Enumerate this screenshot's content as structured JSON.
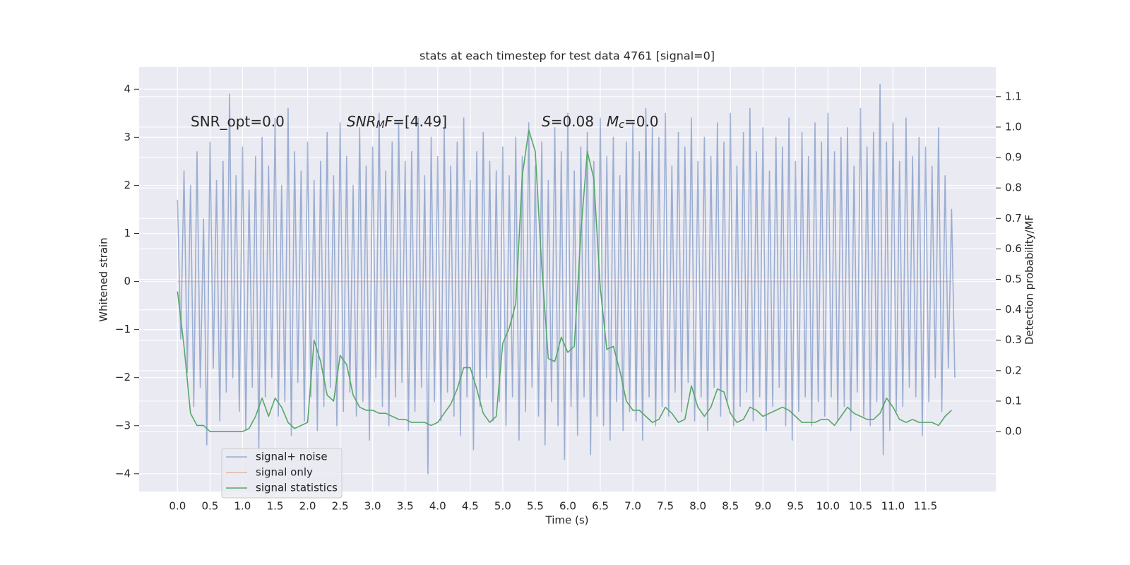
{
  "chart_data": {
    "type": "line",
    "title": "stats at each timestep for test data 4761 [signal=0]",
    "xlabel": "Time (s)",
    "ylabel": "Whitened strain",
    "y2label": "Detection probability/MF",
    "grid": true,
    "legend": "lower left",
    "xlim": [
      -0.59,
      12.58
    ],
    "ylim": [
      -4.37,
      4.46
    ],
    "y2lim": [
      -0.197,
      1.197
    ],
    "xticks": [
      {
        "value": 0,
        "label": "0.0"
      },
      {
        "value": 0.5,
        "label": "0.5"
      },
      {
        "value": 1,
        "label": "1.0"
      },
      {
        "value": 1.5,
        "label": "1.5"
      },
      {
        "value": 2,
        "label": "2.0"
      },
      {
        "value": 2.5,
        "label": "2.5"
      },
      {
        "value": 3,
        "label": "3.0"
      },
      {
        "value": 3.5,
        "label": "3.5"
      },
      {
        "value": 4,
        "label": "4.0"
      },
      {
        "value": 4.5,
        "label": "4.5"
      },
      {
        "value": 5,
        "label": "5.0"
      },
      {
        "value": 5.5,
        "label": "5.5"
      },
      {
        "value": 6,
        "label": "6.0"
      },
      {
        "value": 6.5,
        "label": "6.5"
      },
      {
        "value": 7,
        "label": "7.0"
      },
      {
        "value": 7.5,
        "label": "7.5"
      },
      {
        "value": 8,
        "label": "8.0"
      },
      {
        "value": 8.5,
        "label": "8.5"
      },
      {
        "value": 9,
        "label": "9.0"
      },
      {
        "value": 9.5,
        "label": "9.5"
      },
      {
        "value": 10,
        "label": "10.0"
      },
      {
        "value": 10.5,
        "label": "10.5"
      },
      {
        "value": 11,
        "label": "11.0"
      },
      {
        "value": 11.5,
        "label": "11.5"
      }
    ],
    "yticks": [
      {
        "value": -4,
        "label": "−4"
      },
      {
        "value": -3,
        "label": "−3"
      },
      {
        "value": -2,
        "label": "−2"
      },
      {
        "value": -1,
        "label": "−1"
      },
      0,
      1,
      2,
      3,
      4
    ],
    "y2ticks": [
      {
        "value": 0,
        "label": "0.0"
      },
      {
        "value": 0.1,
        "label": "0.1"
      },
      {
        "value": 0.2,
        "label": "0.2"
      },
      {
        "value": 0.3,
        "label": "0.3"
      },
      {
        "value": 0.4,
        "label": "0.4"
      },
      {
        "value": 0.5,
        "label": "0.5"
      },
      {
        "value": 0.6,
        "label": "0.6"
      },
      {
        "value": 0.7,
        "label": "0.7"
      },
      {
        "value": 0.8,
        "label": "0.8"
      },
      {
        "value": 0.9,
        "label": "0.9"
      },
      {
        "value": 1,
        "label": "1.0"
      },
      {
        "value": 1.1,
        "label": "1.1"
      }
    ],
    "annotations": [
      {
        "segments": [
          {
            "text": "SNR_opt=0.0"
          }
        ]
      },
      {
        "segments": [
          {
            "text": "SNR",
            "italic": true
          },
          {
            "text": "M",
            "italic": true,
            "sub": true
          },
          {
            "text": "F",
            "italic": true
          },
          {
            "text": "=[4.49]"
          }
        ]
      },
      {
        "segments": [
          {
            "text": "S",
            "italic": true
          },
          {
            "text": "=0.08"
          }
        ]
      },
      {
        "segments": [
          {
            "text": "M",
            "italic": true
          },
          {
            "text": "c",
            "italic": true,
            "sub": true
          },
          {
            "text": "=0.0"
          }
        ]
      }
    ],
    "x": [
      0,
      0.1,
      0.2,
      0.3,
      0.4,
      0.5,
      0.6,
      0.7,
      0.8,
      0.9,
      1,
      1.1,
      1.2,
      1.3,
      1.4,
      1.5,
      1.6,
      1.7,
      1.8,
      1.9,
      2,
      2.1,
      2.2,
      2.3,
      2.4,
      2.5,
      2.6,
      2.7,
      2.8,
      2.9,
      3,
      3.1,
      3.2,
      3.3,
      3.4,
      3.5,
      3.6,
      3.7,
      3.8,
      3.9,
      4,
      4.1,
      4.2,
      4.3,
      4.4,
      4.5,
      4.6,
      4.7,
      4.8,
      4.9,
      5,
      5.1,
      5.2,
      5.3,
      5.4,
      5.5,
      5.6,
      5.7,
      5.8,
      5.9,
      6,
      6.1,
      6.2,
      6.3,
      6.4,
      6.5,
      6.6,
      6.7,
      6.8,
      6.9,
      7,
      7.1,
      7.2,
      7.3,
      7.4,
      7.5,
      7.6,
      7.7,
      7.8,
      7.9,
      8,
      8.1,
      8.2,
      8.3,
      8.4,
      8.5,
      8.6,
      8.7,
      8.8,
      8.9,
      9,
      9.1,
      9.2,
      9.3,
      9.4,
      9.5,
      9.6,
      9.7,
      9.8,
      9.9,
      10,
      10.1,
      10.2,
      10.3,
      10.4,
      10.5,
      10.6,
      10.7,
      10.8,
      10.9,
      11,
      11.1,
      11.2,
      11.3,
      11.4,
      11.5,
      11.6,
      11.7,
      11.8,
      11.9
    ],
    "series": [
      {
        "name": "signal+ noise",
        "color": "#4c72b0",
        "opacity": 0.5,
        "x": [
          0,
          0.05,
          0.1,
          0.15,
          0.2,
          0.25,
          0.3,
          0.35,
          0.4,
          0.45,
          0.5,
          0.55,
          0.6,
          0.65,
          0.7,
          0.75,
          0.8,
          0.85,
          0.9,
          0.95,
          1,
          1.05,
          1.1,
          1.15,
          1.2,
          1.25,
          1.3,
          1.35,
          1.4,
          1.45,
          1.5,
          1.55,
          1.6,
          1.65,
          1.7,
          1.75,
          1.8,
          1.85,
          1.9,
          1.95,
          2,
          2.05,
          2.1,
          2.15,
          2.2,
          2.25,
          2.3,
          2.35,
          2.4,
          2.45,
          2.5,
          2.55,
          2.6,
          2.65,
          2.7,
          2.75,
          2.8,
          2.85,
          2.9,
          2.95,
          3,
          3.05,
          3.1,
          3.15,
          3.2,
          3.25,
          3.3,
          3.35,
          3.4,
          3.45,
          3.5,
          3.55,
          3.6,
          3.65,
          3.7,
          3.75,
          3.8,
          3.85,
          3.9,
          3.95,
          4,
          4.05,
          4.1,
          4.15,
          4.2,
          4.25,
          4.3,
          4.35,
          4.4,
          4.45,
          4.5,
          4.55,
          4.6,
          4.65,
          4.7,
          4.75,
          4.8,
          4.85,
          4.9,
          4.95,
          5,
          5.05,
          5.1,
          5.15,
          5.2,
          5.25,
          5.3,
          5.35,
          5.4,
          5.45,
          5.5,
          5.55,
          5.6,
          5.65,
          5.7,
          5.75,
          5.8,
          5.85,
          5.9,
          5.95,
          6,
          6.05,
          6.1,
          6.15,
          6.2,
          6.25,
          6.3,
          6.35,
          6.4,
          6.45,
          6.5,
          6.55,
          6.6,
          6.65,
          6.7,
          6.75,
          6.8,
          6.85,
          6.9,
          6.95,
          7,
          7.05,
          7.1,
          7.15,
          7.2,
          7.25,
          7.3,
          7.35,
          7.4,
          7.45,
          7.5,
          7.55,
          7.6,
          7.65,
          7.7,
          7.75,
          7.8,
          7.85,
          7.9,
          7.95,
          8,
          8.05,
          8.1,
          8.15,
          8.2,
          8.25,
          8.3,
          8.35,
          8.4,
          8.45,
          8.5,
          8.55,
          8.6,
          8.65,
          8.7,
          8.75,
          8.8,
          8.85,
          8.9,
          8.95,
          9,
          9.05,
          9.1,
          9.15,
          9.2,
          9.25,
          9.3,
          9.35,
          9.4,
          9.45,
          9.5,
          9.55,
          9.6,
          9.65,
          9.7,
          9.75,
          9.8,
          9.85,
          9.9,
          9.95,
          10,
          10.05,
          10.1,
          10.15,
          10.2,
          10.25,
          10.3,
          10.35,
          10.4,
          10.45,
          10.5,
          10.55,
          10.6,
          10.65,
          10.7,
          10.75,
          10.8,
          10.85,
          10.9,
          10.95,
          11,
          11.05,
          11.1,
          11.15,
          11.2,
          11.25,
          11.3,
          11.35,
          11.4,
          11.45,
          11.5,
          11.55,
          11.6,
          11.65,
          11.7,
          11.75,
          11.8,
          11.85,
          11.9,
          11.95
        ],
        "values": [
          1.7,
          -1.2,
          2.3,
          -1.9,
          2.0,
          -2.6,
          2.7,
          -2.2,
          1.3,
          -3.4,
          2.9,
          -1.8,
          2.1,
          -2.9,
          2.5,
          -2.3,
          3.9,
          -2.0,
          2.2,
          -2.7,
          2.8,
          -3.1,
          1.9,
          -2.2,
          2.6,
          -3.5,
          3.0,
          -2.4,
          2.4,
          -2.0,
          3.4,
          -2.8,
          2.0,
          -2.5,
          3.6,
          -3.2,
          2.7,
          -2.1,
          2.3,
          -2.9,
          2.9,
          -2.4,
          2.1,
          -3.1,
          2.5,
          -2.6,
          3.1,
          -2.2,
          2.2,
          -3.0,
          3.3,
          -2.7,
          2.6,
          -2.3,
          2.0,
          -2.8,
          3.2,
          -2.5,
          2.4,
          -3.3,
          2.8,
          -2.0,
          3.5,
          -2.6,
          2.3,
          -3.0,
          2.9,
          -2.4,
          3.3,
          -2.1,
          2.5,
          -3.1,
          2.7,
          -2.7,
          3.4,
          -2.2,
          2.2,
          -4.0,
          3.0,
          -2.5,
          2.6,
          -2.9,
          3.2,
          -2.3,
          2.4,
          -2.8,
          2.9,
          -3.2,
          3.4,
          -2.4,
          2.1,
          -3.5,
          2.7,
          -2.6,
          3.1,
          -2.0,
          2.5,
          -2.9,
          2.3,
          -2.5,
          2.8,
          -3.0,
          2.2,
          -2.4,
          3.0,
          -3.3,
          2.6,
          -2.7,
          3.3,
          -2.2,
          2.4,
          -2.8,
          2.9,
          -3.4,
          2.1,
          -2.5,
          3.2,
          -3.0,
          2.7,
          -3.7,
          3.5,
          -2.6,
          2.3,
          -3.2,
          2.8,
          -2.4,
          3.1,
          -3.6,
          2.5,
          -2.8,
          3.4,
          -3.0,
          2.6,
          -3.3,
          3.0,
          -2.5,
          2.2,
          -3.1,
          2.9,
          -2.7,
          3.3,
          -2.9,
          2.7,
          -3.3,
          3.6,
          -2.4,
          3.2,
          -3.0,
          3.0,
          -2.6,
          3.5,
          -2.8,
          2.4,
          -2.3,
          3.1,
          -2.7,
          2.8,
          -2.1,
          3.4,
          -2.9,
          2.5,
          -2.4,
          3.0,
          -3.1,
          2.6,
          -2.2,
          3.3,
          -2.8,
          2.9,
          -2.5,
          3.5,
          -3.0,
          2.4,
          -2.6,
          3.1,
          -2.3,
          3.6,
          -2.9,
          2.7,
          -2.4,
          3.2,
          -3.1,
          2.3,
          -2.6,
          3.0,
          -2.2,
          2.8,
          -3.0,
          3.4,
          -3.3,
          2.5,
          -2.7,
          3.1,
          -2.4,
          2.6,
          -3.0,
          3.3,
          -2.5,
          2.9,
          -2.8,
          3.5,
          -2.4,
          2.7,
          -2.9,
          3.0,
          -2.6,
          3.2,
          -3.1,
          2.4,
          -2.3,
          3.6,
          -2.8,
          2.8,
          -3.0,
          3.1,
          -2.5,
          4.1,
          -3.6,
          2.9,
          -3.1,
          3.3,
          -2.7,
          2.5,
          -2.6,
          3.4,
          -2.2,
          2.6,
          -2.4,
          3.0,
          -3.2,
          2.8,
          -2.5,
          2.4,
          -2.0,
          3.2,
          -2.7,
          2.2,
          -1.8,
          1.5,
          -2.0
        ]
      },
      {
        "name": "signal only",
        "color": "#dd8452",
        "opacity": 0.5,
        "values": [
          0,
          0,
          0,
          0,
          0,
          0,
          0,
          0,
          0,
          0,
          0,
          0,
          0,
          0,
          0,
          0,
          0,
          0,
          0,
          0,
          0,
          0,
          0,
          0,
          0,
          0,
          0,
          0,
          0,
          0,
          0,
          0,
          0,
          0,
          0,
          0,
          0,
          0,
          0,
          0,
          0,
          0,
          0,
          0,
          0,
          0,
          0,
          0,
          0,
          0,
          0,
          0,
          0,
          0,
          0,
          0,
          0,
          0,
          0,
          0,
          0,
          0,
          0,
          0,
          0,
          0,
          0,
          0,
          0,
          0,
          0,
          0,
          0,
          0,
          0,
          0,
          0,
          0,
          0,
          0,
          0,
          0,
          0,
          0,
          0,
          0,
          0,
          0,
          0,
          0,
          0,
          0,
          0,
          0,
          0,
          0,
          0,
          0,
          0,
          0,
          0,
          0,
          0,
          0,
          0,
          0,
          0,
          0,
          0,
          0,
          0,
          0,
          0,
          0,
          0,
          0,
          0,
          0,
          0,
          0
        ]
      },
      {
        "name": "signal statistics",
        "color": "#55a868",
        "axis": "y2",
        "values": [
          0.46,
          0.28,
          0.06,
          0.02,
          0.02,
          0.0,
          0.0,
          0.0,
          0.0,
          0.0,
          0.0,
          0.01,
          0.05,
          0.11,
          0.05,
          0.11,
          0.08,
          0.03,
          0.01,
          0.02,
          0.03,
          0.3,
          0.23,
          0.12,
          0.1,
          0.25,
          0.22,
          0.12,
          0.08,
          0.07,
          0.07,
          0.06,
          0.06,
          0.05,
          0.04,
          0.04,
          0.03,
          0.03,
          0.03,
          0.02,
          0.03,
          0.06,
          0.09,
          0.14,
          0.21,
          0.21,
          0.14,
          0.06,
          0.03,
          0.05,
          0.29,
          0.34,
          0.42,
          0.84,
          0.99,
          0.92,
          0.54,
          0.24,
          0.23,
          0.31,
          0.26,
          0.28,
          0.65,
          0.92,
          0.83,
          0.47,
          0.27,
          0.28,
          0.2,
          0.1,
          0.07,
          0.07,
          0.05,
          0.03,
          0.04,
          0.08,
          0.06,
          0.03,
          0.04,
          0.15,
          0.08,
          0.05,
          0.08,
          0.14,
          0.13,
          0.06,
          0.03,
          0.04,
          0.08,
          0.07,
          0.05,
          0.06,
          0.07,
          0.08,
          0.07,
          0.05,
          0.03,
          0.03,
          0.03,
          0.04,
          0.04,
          0.02,
          0.05,
          0.08,
          0.06,
          0.05,
          0.04,
          0.04,
          0.06,
          0.11,
          0.08,
          0.04,
          0.03,
          0.04,
          0.03,
          0.03,
          0.03,
          0.02,
          0.05,
          0.07
        ]
      }
    ]
  }
}
